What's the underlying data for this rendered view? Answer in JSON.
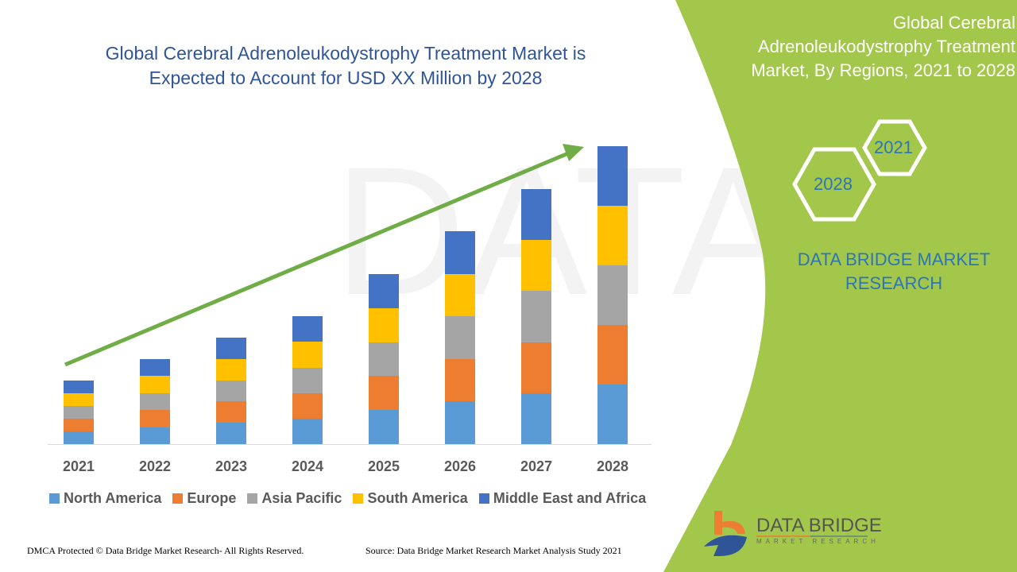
{
  "header": {
    "title_line1": "Global Cerebral Adrenoleukodystrophy Treatment Market is",
    "title_line2": "Expected to Account for USD XX Million by 2028"
  },
  "side_panel": {
    "title_line1": "Global Cerebral",
    "title_line2": "Adrenoleukodystrophy Treatment",
    "title_line3": "Market, By Regions, 2021 to 2028",
    "hex_year_1": "2021",
    "hex_year_2": "2028",
    "brand_line1": "DATA BRIDGE MARKET",
    "brand_line2": "RESEARCH",
    "panel_color": "#a3c74a"
  },
  "logo": {
    "name": "DATA BRIDGE",
    "tagline": "MARKET RESEARCH"
  },
  "footer": {
    "copyright": "DMCA Protected © Data Bridge Market Research- All Rights Reserved.",
    "source": "Source: Data Bridge Market Research Market Analysis Study 2021"
  },
  "chart_data": {
    "type": "bar",
    "stacked": true,
    "categories": [
      "2021",
      "2022",
      "2023",
      "2024",
      "2025",
      "2026",
      "2027",
      "2028"
    ],
    "series": [
      {
        "name": "North America",
        "color": "#5b9bd5",
        "values": [
          16,
          21,
          27,
          32,
          43,
          54,
          64,
          75
        ]
      },
      {
        "name": "Europe",
        "color": "#ed7d31",
        "values": [
          16,
          22,
          27,
          32,
          43,
          53,
          64,
          75
        ]
      },
      {
        "name": "Asia Pacific",
        "color": "#a5a5a5",
        "values": [
          16,
          21,
          26,
          32,
          42,
          54,
          65,
          75
        ]
      },
      {
        "name": "South America",
        "color": "#ffc000",
        "values": [
          16,
          22,
          27,
          33,
          43,
          53,
          64,
          75
        ]
      },
      {
        "name": "Middle East and Africa",
        "color": "#4472c4",
        "values": [
          16,
          21,
          27,
          32,
          43,
          54,
          64,
          75
        ]
      }
    ],
    "ylim": [
      0,
      400
    ],
    "grid": false,
    "legend_placement": "bottom",
    "trend_arrow": true,
    "trend_color": "#70ad47"
  }
}
